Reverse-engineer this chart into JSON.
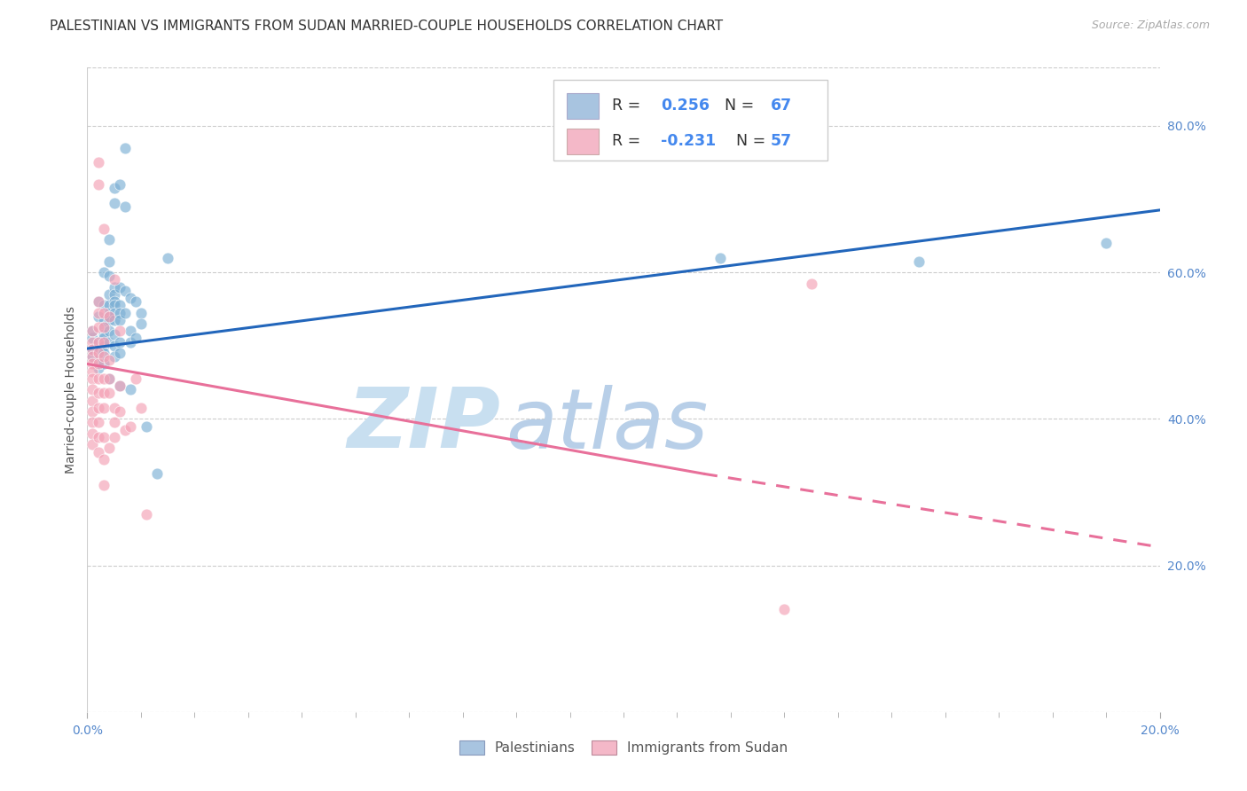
{
  "title": "PALESTINIAN VS IMMIGRANTS FROM SUDAN MARRIED-COUPLE HOUSEHOLDS CORRELATION CHART",
  "source": "Source: ZipAtlas.com",
  "ylabel": "Married-couple Households",
  "blue_scatter": [
    [
      0.001,
      0.485
    ],
    [
      0.001,
      0.51
    ],
    [
      0.001,
      0.52
    ],
    [
      0.001,
      0.495
    ],
    [
      0.002,
      0.54
    ],
    [
      0.002,
      0.56
    ],
    [
      0.002,
      0.505
    ],
    [
      0.002,
      0.495
    ],
    [
      0.002,
      0.48
    ],
    [
      0.002,
      0.47
    ],
    [
      0.003,
      0.6
    ],
    [
      0.003,
      0.555
    ],
    [
      0.003,
      0.535
    ],
    [
      0.003,
      0.525
    ],
    [
      0.003,
      0.515
    ],
    [
      0.003,
      0.51
    ],
    [
      0.003,
      0.5
    ],
    [
      0.003,
      0.49
    ],
    [
      0.003,
      0.475
    ],
    [
      0.004,
      0.645
    ],
    [
      0.004,
      0.615
    ],
    [
      0.004,
      0.595
    ],
    [
      0.004,
      0.57
    ],
    [
      0.004,
      0.555
    ],
    [
      0.004,
      0.545
    ],
    [
      0.004,
      0.54
    ],
    [
      0.004,
      0.535
    ],
    [
      0.004,
      0.52
    ],
    [
      0.004,
      0.505
    ],
    [
      0.004,
      0.455
    ],
    [
      0.005,
      0.715
    ],
    [
      0.005,
      0.695
    ],
    [
      0.005,
      0.58
    ],
    [
      0.005,
      0.57
    ],
    [
      0.005,
      0.56
    ],
    [
      0.005,
      0.555
    ],
    [
      0.005,
      0.545
    ],
    [
      0.005,
      0.535
    ],
    [
      0.005,
      0.515
    ],
    [
      0.005,
      0.5
    ],
    [
      0.005,
      0.485
    ],
    [
      0.006,
      0.72
    ],
    [
      0.006,
      0.58
    ],
    [
      0.006,
      0.555
    ],
    [
      0.006,
      0.545
    ],
    [
      0.006,
      0.535
    ],
    [
      0.006,
      0.505
    ],
    [
      0.006,
      0.49
    ],
    [
      0.006,
      0.445
    ],
    [
      0.007,
      0.77
    ],
    [
      0.007,
      0.69
    ],
    [
      0.007,
      0.575
    ],
    [
      0.007,
      0.545
    ],
    [
      0.008,
      0.565
    ],
    [
      0.008,
      0.52
    ],
    [
      0.008,
      0.505
    ],
    [
      0.008,
      0.44
    ],
    [
      0.009,
      0.56
    ],
    [
      0.009,
      0.51
    ],
    [
      0.01,
      0.545
    ],
    [
      0.01,
      0.53
    ],
    [
      0.011,
      0.39
    ],
    [
      0.013,
      0.325
    ],
    [
      0.015,
      0.62
    ],
    [
      0.118,
      0.62
    ],
    [
      0.155,
      0.615
    ],
    [
      0.19,
      0.64
    ]
  ],
  "pink_scatter": [
    [
      0.001,
      0.52
    ],
    [
      0.001,
      0.505
    ],
    [
      0.001,
      0.495
    ],
    [
      0.001,
      0.485
    ],
    [
      0.001,
      0.475
    ],
    [
      0.001,
      0.465
    ],
    [
      0.001,
      0.455
    ],
    [
      0.001,
      0.44
    ],
    [
      0.001,
      0.425
    ],
    [
      0.001,
      0.41
    ],
    [
      0.001,
      0.395
    ],
    [
      0.001,
      0.38
    ],
    [
      0.001,
      0.365
    ],
    [
      0.002,
      0.75
    ],
    [
      0.002,
      0.72
    ],
    [
      0.002,
      0.56
    ],
    [
      0.002,
      0.545
    ],
    [
      0.002,
      0.525
    ],
    [
      0.002,
      0.505
    ],
    [
      0.002,
      0.49
    ],
    [
      0.002,
      0.475
    ],
    [
      0.002,
      0.455
    ],
    [
      0.002,
      0.435
    ],
    [
      0.002,
      0.415
    ],
    [
      0.002,
      0.395
    ],
    [
      0.002,
      0.375
    ],
    [
      0.002,
      0.355
    ],
    [
      0.003,
      0.66
    ],
    [
      0.003,
      0.545
    ],
    [
      0.003,
      0.525
    ],
    [
      0.003,
      0.505
    ],
    [
      0.003,
      0.485
    ],
    [
      0.003,
      0.455
    ],
    [
      0.003,
      0.435
    ],
    [
      0.003,
      0.415
    ],
    [
      0.003,
      0.375
    ],
    [
      0.003,
      0.345
    ],
    [
      0.003,
      0.31
    ],
    [
      0.004,
      0.54
    ],
    [
      0.004,
      0.48
    ],
    [
      0.004,
      0.455
    ],
    [
      0.004,
      0.435
    ],
    [
      0.004,
      0.36
    ],
    [
      0.005,
      0.59
    ],
    [
      0.005,
      0.415
    ],
    [
      0.005,
      0.395
    ],
    [
      0.005,
      0.375
    ],
    [
      0.006,
      0.52
    ],
    [
      0.006,
      0.445
    ],
    [
      0.006,
      0.41
    ],
    [
      0.007,
      0.385
    ],
    [
      0.008,
      0.39
    ],
    [
      0.009,
      0.455
    ],
    [
      0.01,
      0.415
    ],
    [
      0.011,
      0.27
    ],
    [
      0.13,
      0.14
    ],
    [
      0.135,
      0.585
    ]
  ],
  "blue_line": [
    [
      0.0,
      0.496
    ],
    [
      0.2,
      0.685
    ]
  ],
  "pink_line_solid": [
    [
      0.0,
      0.475
    ],
    [
      0.115,
      0.325
    ]
  ],
  "pink_line_dashed": [
    [
      0.115,
      0.325
    ],
    [
      0.2,
      0.225
    ]
  ],
  "xlim": [
    0.0,
    0.2
  ],
  "ylim": [
    0.0,
    0.88
  ],
  "scatter_alpha": 0.65,
  "scatter_size": 85,
  "scatter_edge_color": "white",
  "blue_color": "#7bafd4",
  "pink_color": "#f4a0b5",
  "line_blue_color": "#2266bb",
  "line_pink_solid_color": "#e8709a",
  "line_pink_dashed_color": "#e8709a",
  "watermark_zip_color": "#c8dff0",
  "watermark_atlas_color": "#b8cfe8",
  "title_fontsize": 11,
  "source_fontsize": 9,
  "axis_label_fontsize": 10,
  "tick_color": "#5588cc",
  "legend_R_color": "#333333",
  "legend_val_color": "#4488ee"
}
